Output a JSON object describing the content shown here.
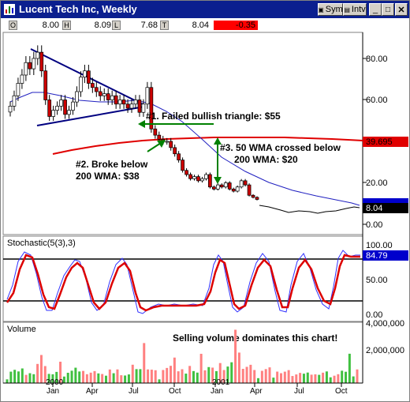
{
  "window": {
    "title": "Lucent Tech Inc, Weekly",
    "buttons": {
      "sym": "Sym",
      "intv": "Intv"
    }
  },
  "quote": {
    "open_label": "O",
    "open": "8.00",
    "high_label": "H",
    "high": "8.09",
    "low_label": "L",
    "low": "7.68",
    "time_label": "T",
    "last": "8.04",
    "change": "-0.35"
  },
  "price_panel": {
    "y_ticks": [
      "80.00",
      "60.00",
      "20.00",
      "0.00"
    ],
    "last_price_badge": "8.04",
    "wma200_badge": "39.695",
    "annotations": {
      "a1": "#1. Failed bullish triangle: $55",
      "a2_line1": "#2. Broke below",
      "a2_line2": "200 WMA: $38",
      "a3_line1": "#3. 50 WMA crossed below",
      "a3_line2": "200 WMA: $20"
    }
  },
  "stoch_panel": {
    "title": "Stochastic(5(3),3)",
    "y_ticks": [
      "100.00",
      "50.00",
      "0.00"
    ],
    "value_badge": "84.79"
  },
  "volume_panel": {
    "title": "Volume",
    "y_ticks": [
      "4,000,000",
      "2,000,000"
    ],
    "annotation": "Selling volume dominates this chart!"
  },
  "x_axis": {
    "labels": [
      "2000",
      "Jan",
      "Apr",
      "Jul",
      "Oct",
      "2001",
      "Jan",
      "Apr",
      "Jul",
      "Oct"
    ]
  },
  "colors": {
    "titlebar": "#0b1f8f",
    "up_candle": "#ffffff",
    "down_candle": "#cc0000",
    "wma200": "#e00000",
    "wma50": "#2020c0",
    "annotation_arrow": "#008000",
    "trendline": "#000080",
    "badge_last": "#0000cc",
    "badge_wma": "#e00000",
    "change_bg": "#ff0000"
  },
  "chart_data": {
    "type": "candlestick",
    "title": "Lucent Tech Inc, Weekly",
    "period": "Weekly",
    "ylim_price": [
      0,
      90
    ],
    "x_start": "2000-01",
    "x_end": "2001-11",
    "price_series": {
      "name": "Lucent Tech Inc",
      "weekly_close_approx": [
        57,
        62,
        68,
        72,
        78,
        75,
        80,
        83,
        74,
        60,
        52,
        55,
        57,
        60,
        53,
        55,
        59,
        64,
        71,
        74,
        68,
        66,
        64,
        62,
        63,
        60,
        62,
        58,
        60,
        58,
        56,
        58,
        60,
        54,
        58,
        66,
        46,
        43,
        41,
        40,
        40,
        37,
        34,
        31,
        26,
        24,
        22,
        23,
        21,
        22,
        24,
        18,
        17,
        19,
        18,
        20,
        17,
        16,
        18,
        21,
        19,
        14,
        13,
        12,
        11,
        10,
        10,
        9.5,
        9,
        8.5,
        8.7,
        8.2,
        8.0,
        7.8,
        7.6,
        7.4,
        7.2,
        7.0,
        7.2,
        7.4,
        7.1,
        6.9,
        7.1,
        7.0,
        7.3,
        7.5,
        7.4,
        7.3,
        7.8,
        8.1,
        8.4,
        8.6,
        8.04
      ],
      "last": 8.04
    },
    "wma200": {
      "last": 39.695
    },
    "stochastic": {
      "name": "Stochastic(5(3),3)",
      "ylim": [
        0,
        100
      ],
      "levels": [
        80,
        20
      ],
      "last": 84.79
    },
    "volume": {
      "ylim": [
        0,
        4000000
      ],
      "max_spike_approx": 3600000
    },
    "annotations": [
      "#1. Failed bullish triangle: $55",
      "#2. Broke below 200 WMA: $38",
      "#3. 50 WMA crossed below 200 WMA: $20",
      "Selling volume dominates this chart!"
    ]
  }
}
